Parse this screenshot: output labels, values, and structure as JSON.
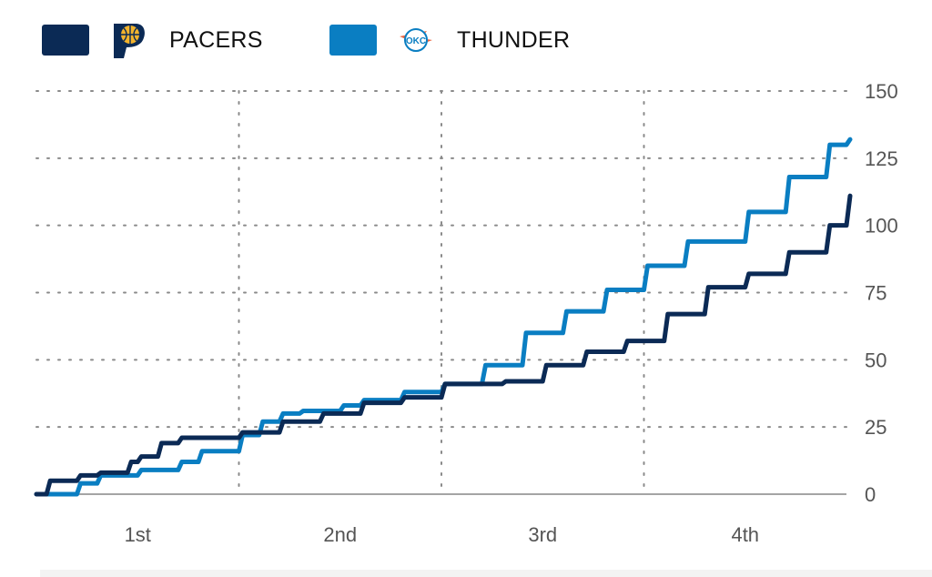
{
  "legend": {
    "pacers": {
      "label": "PACERS",
      "color": "#0b2a55",
      "icon": "pacers-logo-icon"
    },
    "thunder": {
      "label": "THUNDER",
      "color": "#0a7ec2",
      "icon": "thunder-logo-icon",
      "logo_text": "OKC"
    }
  },
  "chart_data": {
    "type": "line",
    "title": "",
    "xlabel": "",
    "ylabel": "",
    "x_unit": "quarter",
    "xlim": [
      0,
      4
    ],
    "ylim": [
      0,
      150
    ],
    "y_ticks": [
      0,
      25,
      50,
      75,
      100,
      125,
      150
    ],
    "y_tick_labels": [
      "0",
      "25",
      "50",
      "75",
      "100",
      "125",
      "150"
    ],
    "x_ticks": [
      0.5,
      1.5,
      2.5,
      3.5
    ],
    "x_tick_labels": [
      "1st",
      "2nd",
      "3rd",
      "4th"
    ],
    "grid": true,
    "legend_position": "top-left",
    "series": [
      {
        "name": "PACERS",
        "color": "#0b2a55",
        "x": [
          0.0,
          0.05,
          0.2,
          0.3,
          0.45,
          0.5,
          0.6,
          0.7,
          0.8,
          1.0,
          1.2,
          1.4,
          1.6,
          1.8,
          2.0,
          2.3,
          2.5,
          2.7,
          2.9,
          3.1,
          3.3,
          3.5,
          3.7,
          3.9,
          4.0
        ],
        "y": [
          0,
          5,
          7,
          8,
          12,
          14,
          19,
          21,
          21,
          23,
          27,
          30,
          34,
          36,
          41,
          42,
          48,
          53,
          57,
          67,
          77,
          82,
          90,
          100,
          111
        ]
      },
      {
        "name": "THUNDER",
        "color": "#0a7ec2",
        "x": [
          0.0,
          0.2,
          0.3,
          0.5,
          0.55,
          0.7,
          0.8,
          1.0,
          1.1,
          1.2,
          1.3,
          1.5,
          1.6,
          1.8,
          2.0,
          2.2,
          2.4,
          2.6,
          2.8,
          3.0,
          3.2,
          3.5,
          3.7,
          3.9,
          4.0
        ],
        "y": [
          0,
          4,
          7,
          9,
          9,
          12,
          16,
          22,
          27,
          30,
          31,
          33,
          35,
          38,
          41,
          48,
          60,
          68,
          76,
          85,
          94,
          105,
          118,
          130,
          132
        ]
      }
    ]
  }
}
